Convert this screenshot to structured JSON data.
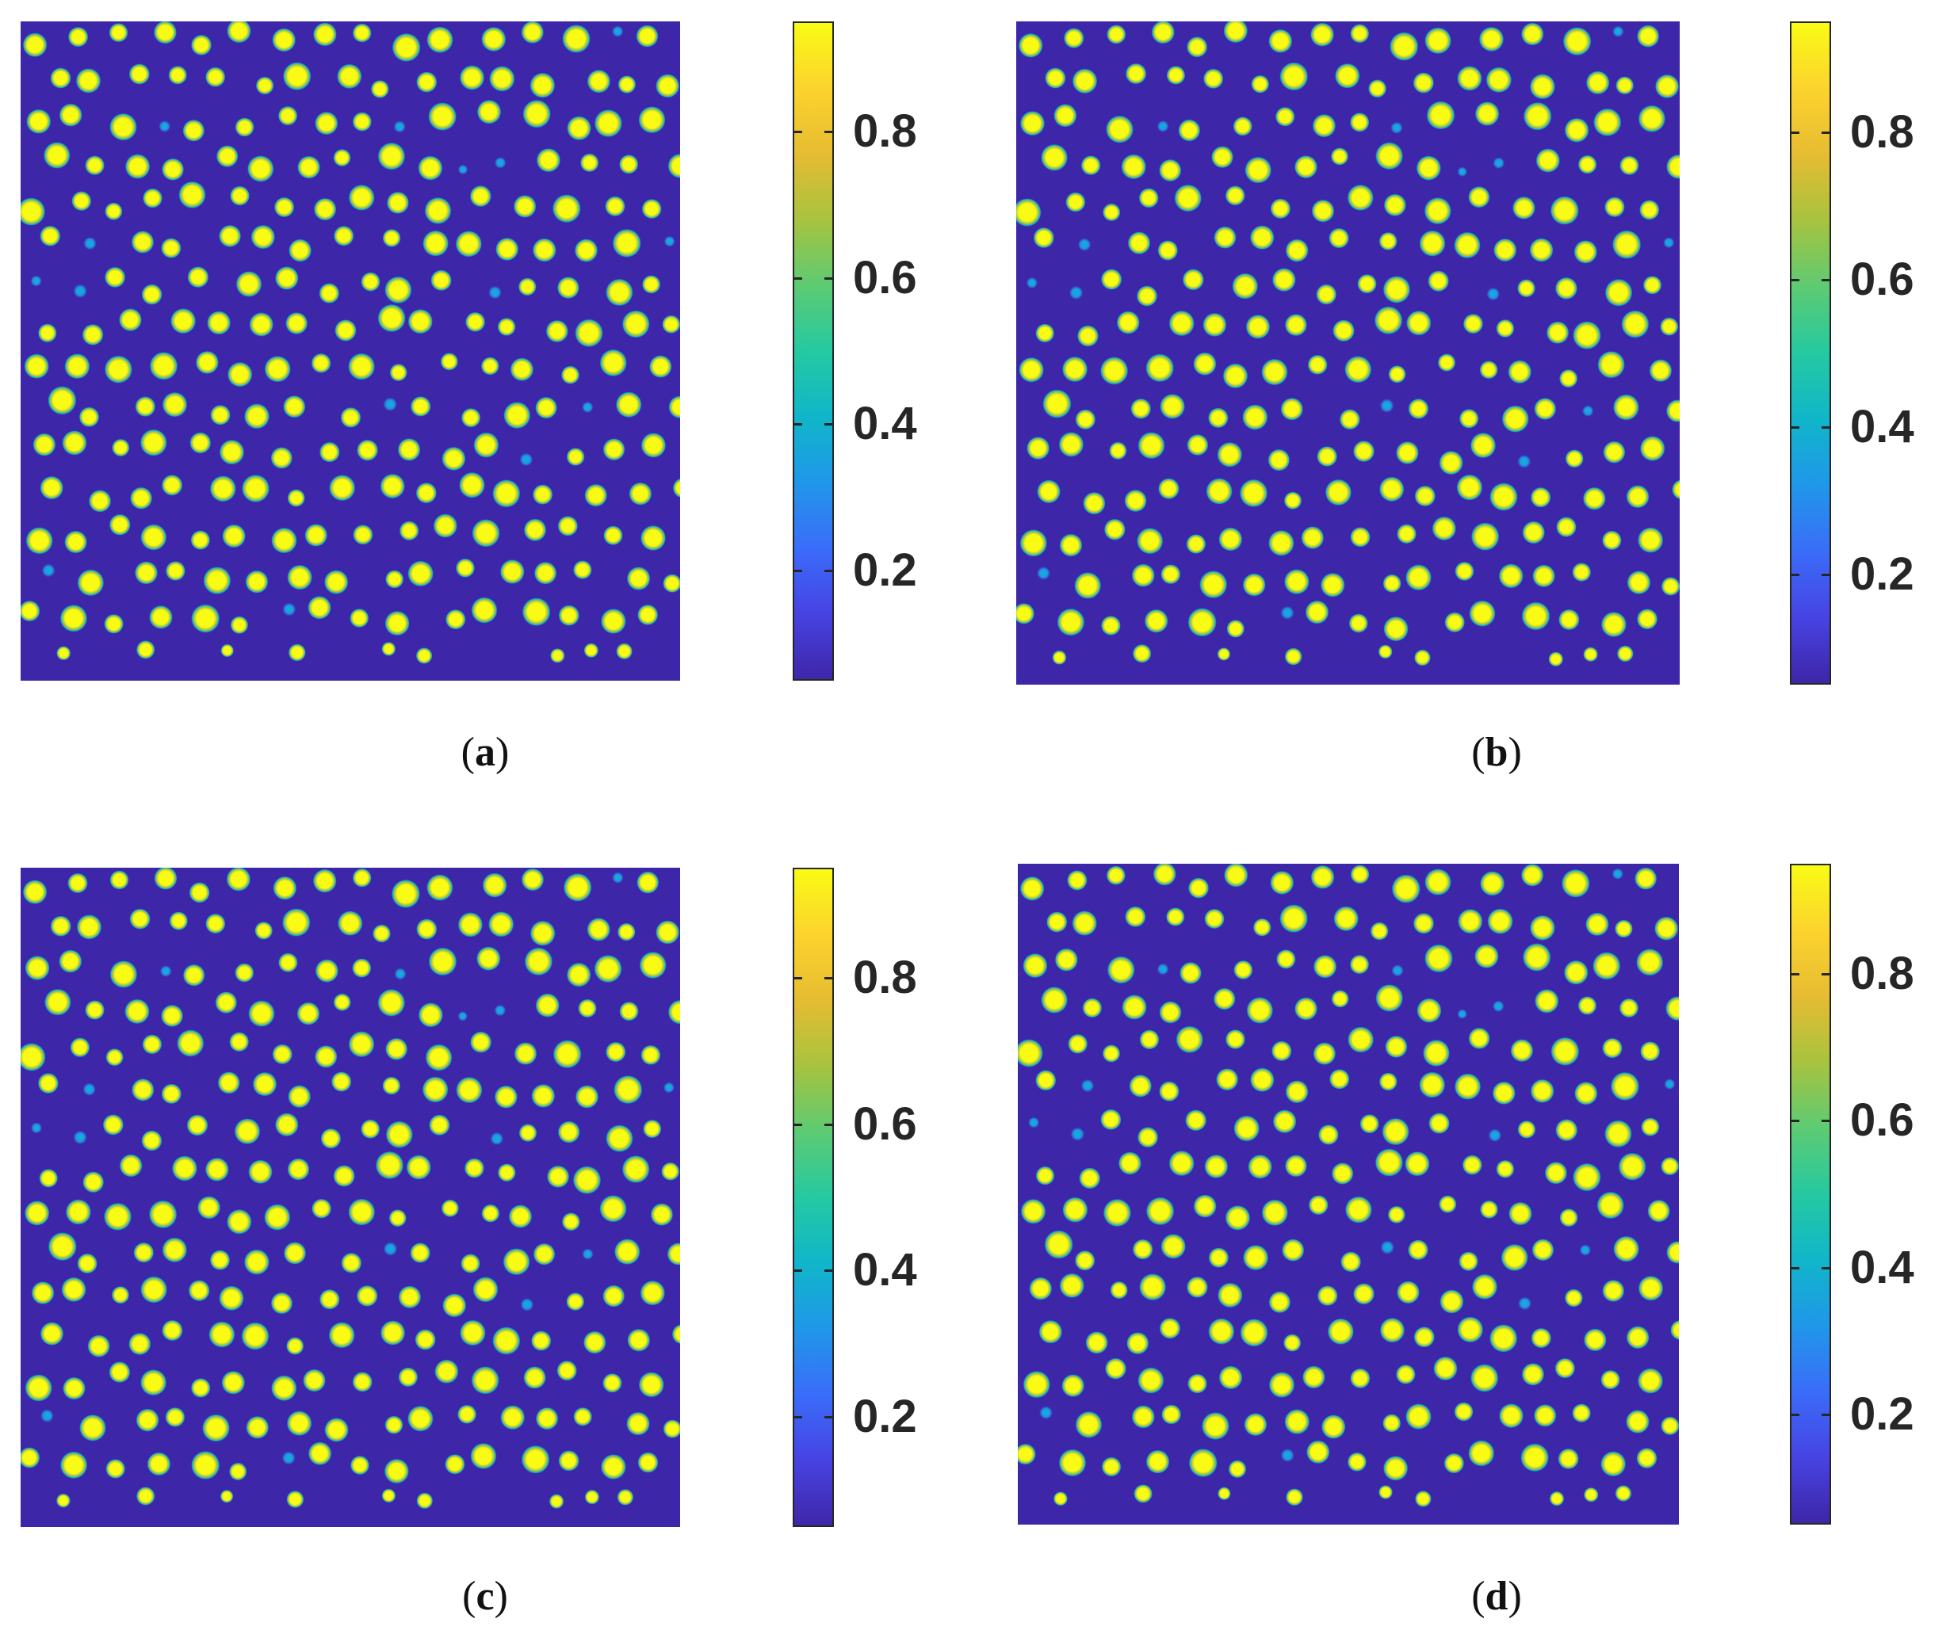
{
  "figure": {
    "colormap": "parula",
    "colormap_stops": [
      "#3E26A8",
      "#4743E3",
      "#3A6DF9",
      "#2097E9",
      "#10B6C9",
      "#25C9A1",
      "#5DCB73",
      "#A7C33F",
      "#E6BC32",
      "#FCD32D",
      "#F9FB15"
    ],
    "background_color": "#3E26A8",
    "droplet_color": "#F9FB15"
  },
  "chart_data": [
    {
      "type": "heatmap",
      "panel_label": "a",
      "caption": {
        "open": "(",
        "letter": "a",
        "close": ")"
      },
      "colorbar": {
        "range": [
          0.05,
          0.95
        ],
        "ticks": [
          "0.2",
          "0.4",
          "0.6",
          "0.8"
        ],
        "tick_values": [
          0.2,
          0.4,
          0.6,
          0.8
        ]
      },
      "description_values": {
        "background_value": 0.05,
        "droplet_value": 0.95
      }
    },
    {
      "type": "heatmap",
      "panel_label": "b",
      "caption": {
        "open": "(",
        "letter": "b",
        "close": ")"
      },
      "colorbar": {
        "range": [
          0.05,
          0.95
        ],
        "ticks": [
          "0.2",
          "0.4",
          "0.6",
          "0.8"
        ],
        "tick_values": [
          0.2,
          0.4,
          0.6,
          0.8
        ]
      },
      "description_values": {
        "background_value": 0.05,
        "droplet_value": 0.95
      }
    },
    {
      "type": "heatmap",
      "panel_label": "c",
      "caption": {
        "open": "(",
        "letter": "c",
        "close": ")"
      },
      "colorbar": {
        "range": [
          0.05,
          0.95
        ],
        "ticks": [
          "0.2",
          "0.4",
          "0.6",
          "0.8"
        ],
        "tick_values": [
          0.2,
          0.4,
          0.6,
          0.8
        ]
      },
      "description_values": {
        "background_value": 0.05,
        "droplet_value": 0.95
      }
    },
    {
      "type": "heatmap",
      "panel_label": "d",
      "caption": {
        "open": "(",
        "letter": "d",
        "close": ")"
      },
      "colorbar": {
        "range": [
          0.05,
          0.95
        ],
        "ticks": [
          "0.2",
          "0.4",
          "0.6",
          "0.8"
        ],
        "tick_values": [
          0.2,
          0.4,
          0.6,
          0.8
        ]
      },
      "description_values": {
        "background_value": 0.05,
        "droplet_value": 0.95
      }
    }
  ]
}
